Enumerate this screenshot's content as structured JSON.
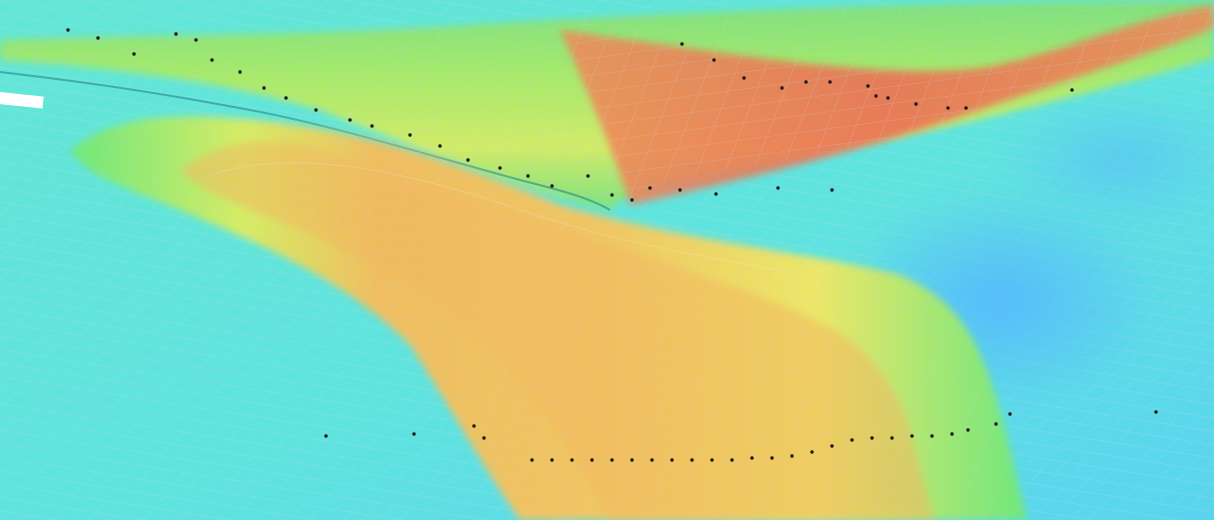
{
  "scene": {
    "kind": "3d-terrain-surface-view",
    "colormap": {
      "low": "#4aa8f0",
      "mid_low": "#5ee8e0",
      "mid": "#6ee87a",
      "mid_high": "#f2ee6a",
      "high": "#f2a65a",
      "peak": "#ef6a55"
    },
    "mesh_line_color": "#c8c8d8",
    "point_color": "#1a1a1a",
    "text": []
  }
}
